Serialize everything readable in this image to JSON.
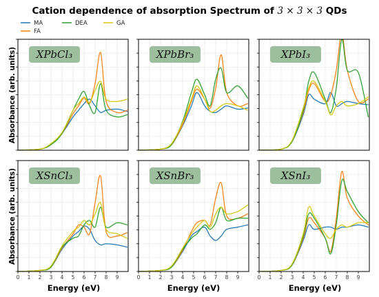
{
  "title": {
    "prefix": "Cation dependence of absorption Spectrum of ",
    "math": "3 × 3 × 3",
    "suffix": " QDs"
  },
  "colors": {
    "MA": "#1f77b4",
    "FA": "#ff7f0e",
    "DEA": "#2ca02c",
    "GA": "#d4c80a",
    "label_box": "#9dbf9d"
  },
  "legend": [
    {
      "key": "MA",
      "label": "MA"
    },
    {
      "key": "FA",
      "label": "FA"
    },
    {
      "key": "DEA",
      "label": "DEA"
    },
    {
      "key": "GA",
      "label": "GA"
    }
  ],
  "ylabel": "Absorbance (arb. units)",
  "xlabel": "Energy (eV)",
  "xticks": [
    "0",
    "1",
    "2",
    "3",
    "4",
    "5",
    "6",
    "7",
    "8",
    "9"
  ],
  "chart_data": [
    {
      "type": "line",
      "panel": "XPbCl3",
      "label": "XPbCl₃",
      "x": [
        0,
        2,
        3,
        4,
        5,
        5.5,
        6,
        6.5,
        7,
        7.5,
        8,
        9,
        9.9
      ],
      "xlim": [
        0,
        10
      ],
      "ylim": [
        0,
        1
      ],
      "grid": true,
      "series": [
        {
          "name": "MA",
          "values": [
            0,
            0.01,
            0.05,
            0.15,
            0.3,
            0.36,
            0.42,
            0.46,
            0.4,
            0.34,
            0.36,
            0.37,
            0.35
          ]
        },
        {
          "name": "FA",
          "values": [
            0,
            0.01,
            0.05,
            0.15,
            0.33,
            0.4,
            0.47,
            0.42,
            0.6,
            0.88,
            0.44,
            0.34,
            0.36
          ]
        },
        {
          "name": "DEA",
          "values": [
            0,
            0.01,
            0.05,
            0.15,
            0.36,
            0.46,
            0.53,
            0.4,
            0.34,
            0.6,
            0.36,
            0.3,
            0.32
          ]
        },
        {
          "name": "GA",
          "values": [
            0,
            0.01,
            0.06,
            0.16,
            0.36,
            0.42,
            0.48,
            0.43,
            0.54,
            0.62,
            0.46,
            0.44,
            0.46
          ]
        }
      ]
    },
    {
      "type": "line",
      "panel": "XPbBr3",
      "label": "XPbBr₃",
      "x": [
        0,
        2,
        3,
        4,
        4.8,
        5.3,
        6,
        6.5,
        7,
        7.5,
        8,
        9,
        9.9
      ],
      "xlim": [
        0,
        10
      ],
      "ylim": [
        0,
        1
      ],
      "grid": true,
      "series": [
        {
          "name": "MA",
          "values": [
            0,
            0.01,
            0.05,
            0.22,
            0.4,
            0.52,
            0.4,
            0.35,
            0.34,
            0.37,
            0.4,
            0.37,
            0.38
          ]
        },
        {
          "name": "FA",
          "values": [
            0,
            0.01,
            0.05,
            0.23,
            0.44,
            0.55,
            0.46,
            0.38,
            0.56,
            0.86,
            0.52,
            0.4,
            0.42
          ]
        },
        {
          "name": "DEA",
          "values": [
            0,
            0.01,
            0.05,
            0.26,
            0.52,
            0.64,
            0.5,
            0.4,
            0.64,
            0.74,
            0.52,
            0.58,
            0.47
          ]
        },
        {
          "name": "GA",
          "values": [
            0,
            0.01,
            0.06,
            0.25,
            0.46,
            0.58,
            0.46,
            0.35,
            0.36,
            0.4,
            0.42,
            0.4,
            0.36
          ]
        }
      ]
    },
    {
      "type": "line",
      "panel": "XPbI3",
      "label": "XPbI₃",
      "x": [
        0,
        2,
        3,
        4,
        4.5,
        5,
        6,
        6.5,
        7,
        7.5,
        8,
        9,
        9.9
      ],
      "xlim": [
        0,
        10
      ],
      "ylim": [
        0,
        1
      ],
      "grid": true,
      "series": [
        {
          "name": "MA",
          "values": [
            0,
            0.01,
            0.08,
            0.32,
            0.5,
            0.46,
            0.42,
            0.52,
            0.4,
            0.42,
            0.44,
            0.42,
            0.41
          ]
        },
        {
          "name": "FA",
          "values": [
            0,
            0.01,
            0.08,
            0.34,
            0.54,
            0.6,
            0.44,
            0.5,
            0.72,
            1.05,
            0.72,
            0.44,
            0.46
          ]
        },
        {
          "name": "DEA",
          "values": [
            0,
            0.01,
            0.08,
            0.36,
            0.62,
            0.7,
            0.46,
            0.34,
            0.56,
            1.0,
            0.72,
            0.7,
            0.3
          ]
        },
        {
          "name": "GA",
          "values": [
            0,
            0.01,
            0.09,
            0.38,
            0.56,
            0.62,
            0.44,
            0.32,
            0.4,
            0.44,
            0.4,
            0.42,
            0.48
          ]
        }
      ]
    },
    {
      "type": "line",
      "panel": "XSnCl3",
      "label": "XSnCl₃",
      "x": [
        0,
        2,
        3,
        4,
        5,
        5.5,
        6,
        6.5,
        7,
        7.5,
        8,
        9,
        9.9
      ],
      "xlim": [
        0,
        10
      ],
      "ylim": [
        0,
        1
      ],
      "grid": true,
      "series": [
        {
          "name": "MA",
          "values": [
            0,
            0.01,
            0.04,
            0.2,
            0.32,
            0.36,
            0.41,
            0.38,
            0.28,
            0.24,
            0.25,
            0.24,
            0.22
          ]
        },
        {
          "name": "FA",
          "values": [
            0,
            0.01,
            0.04,
            0.21,
            0.34,
            0.42,
            0.4,
            0.34,
            0.62,
            0.86,
            0.36,
            0.32,
            0.35
          ]
        },
        {
          "name": "DEA",
          "values": [
            0,
            0.01,
            0.04,
            0.22,
            0.3,
            0.32,
            0.42,
            0.46,
            0.4,
            0.58,
            0.4,
            0.44,
            0.42
          ]
        },
        {
          "name": "GA",
          "values": [
            0,
            0.01,
            0.05,
            0.23,
            0.36,
            0.4,
            0.46,
            0.42,
            0.52,
            0.62,
            0.38,
            0.34,
            0.3
          ]
        }
      ]
    },
    {
      "type": "line",
      "panel": "XSnBr3",
      "label": "XSnBr₃",
      "x": [
        0,
        2,
        3,
        4,
        4.8,
        5.3,
        6,
        6.5,
        7,
        7.5,
        8,
        9,
        9.9
      ],
      "xlim": [
        0,
        10
      ],
      "ylim": [
        0,
        1
      ],
      "grid": true,
      "series": [
        {
          "name": "MA",
          "values": [
            0,
            0.01,
            0.04,
            0.18,
            0.32,
            0.36,
            0.4,
            0.32,
            0.28,
            0.32,
            0.38,
            0.4,
            0.42
          ]
        },
        {
          "name": "FA",
          "values": [
            0,
            0.01,
            0.04,
            0.19,
            0.36,
            0.44,
            0.46,
            0.42,
            0.66,
            0.8,
            0.5,
            0.48,
            0.52
          ]
        },
        {
          "name": "DEA",
          "values": [
            0,
            0.01,
            0.04,
            0.2,
            0.3,
            0.34,
            0.42,
            0.38,
            0.44,
            0.58,
            0.46,
            0.48,
            0.48
          ]
        },
        {
          "name": "GA",
          "values": [
            0,
            0.01,
            0.05,
            0.21,
            0.34,
            0.4,
            0.46,
            0.4,
            0.52,
            0.58,
            0.52,
            0.54,
            0.6
          ]
        }
      ]
    },
    {
      "type": "line",
      "panel": "XSnI3",
      "label": "XSnI₃",
      "x": [
        0,
        2,
        3,
        4,
        4.5,
        5,
        6,
        6.5,
        7,
        7.5,
        8,
        9,
        9.9
      ],
      "xlim": [
        0,
        10
      ],
      "ylim": [
        0,
        1
      ],
      "grid": true,
      "series": [
        {
          "name": "MA",
          "values": [
            0,
            0.01,
            0.06,
            0.28,
            0.42,
            0.38,
            0.4,
            0.4,
            0.38,
            0.4,
            0.4,
            0.42,
            0.4
          ]
        },
        {
          "name": "FA",
          "values": [
            0,
            0.01,
            0.06,
            0.3,
            0.48,
            0.44,
            0.3,
            0.18,
            0.48,
            0.9,
            0.66,
            0.5,
            0.42
          ]
        },
        {
          "name": "DEA",
          "values": [
            0,
            0.01,
            0.06,
            0.32,
            0.52,
            0.48,
            0.3,
            0.16,
            0.42,
            0.82,
            0.72,
            0.54,
            0.44
          ]
        },
        {
          "name": "GA",
          "values": [
            0,
            0.01,
            0.07,
            0.34,
            0.58,
            0.5,
            0.34,
            0.3,
            0.38,
            0.42,
            0.4,
            0.44,
            0.44
          ]
        }
      ]
    }
  ]
}
